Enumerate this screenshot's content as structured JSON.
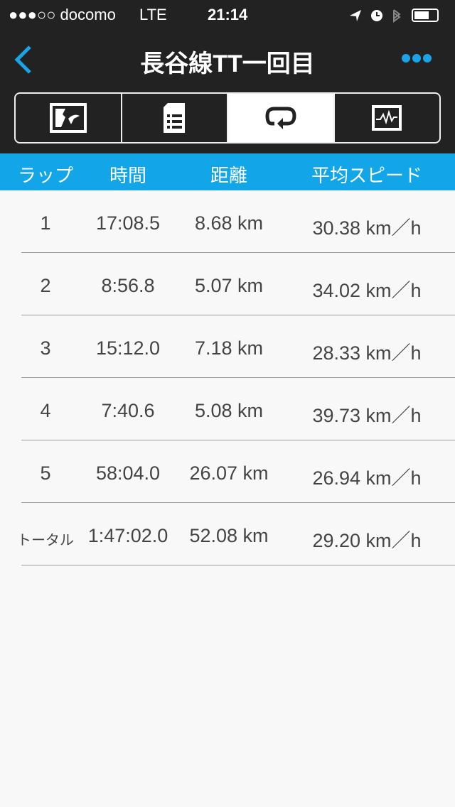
{
  "status": {
    "carrier": "●●●○○ docomo",
    "network": "LTE",
    "time": "21:14"
  },
  "nav": {
    "title": "長谷線TT一回目",
    "back_icon": "chevron-left-icon",
    "more_icon": "more-dots-icon",
    "accent": "#1aa3e8"
  },
  "tabs": [
    {
      "icon": "map-icon"
    },
    {
      "icon": "details-list-icon"
    },
    {
      "icon": "laps-loop-icon",
      "active": true
    },
    {
      "icon": "graph-icon"
    }
  ],
  "table": {
    "headers": [
      "ラップ",
      "時間",
      "距離",
      "平均スピード"
    ],
    "rows": [
      [
        "1",
        "17:08.5",
        "8.68 km",
        "30.38 km／h"
      ],
      [
        "2",
        "8:56.8",
        "5.07 km",
        "34.02 km／h"
      ],
      [
        "3",
        "15:12.0",
        "7.18 km",
        "28.33 km／h"
      ],
      [
        "4",
        "7:40.6",
        "5.08 km",
        "39.73 km／h"
      ],
      [
        "5",
        "58:04.0",
        "26.07 km",
        "26.94 km／h"
      ],
      [
        "トータル",
        "1:47:02.0",
        "52.08 km",
        "29.20 km／h"
      ]
    ]
  }
}
